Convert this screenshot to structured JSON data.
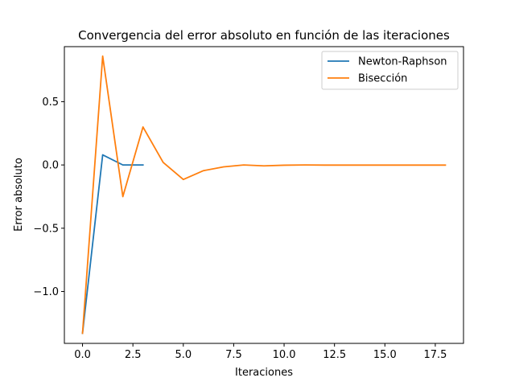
{
  "chart_data": {
    "type": "line",
    "title": "Convergencia del error absoluto en función de las iteraciones",
    "xlabel": "Iteraciones",
    "ylabel": "Error absoluto",
    "xlim": [
      -0.9,
      18.9
    ],
    "ylim": [
      -1.41,
      0.935
    ],
    "xticks": [
      0,
      2.5,
      5,
      7.5,
      10,
      12.5,
      15,
      17.5
    ],
    "xtick_labels": [
      "0.0",
      "2.5",
      "5.0",
      "7.5",
      "10.0",
      "12.5",
      "15.0",
      "17.5"
    ],
    "yticks": [
      -1.0,
      -0.5,
      0.0,
      0.5
    ],
    "ytick_labels": [
      "−1.0",
      "−0.5",
      "0.0",
      "0.5"
    ],
    "grid": false,
    "legend_position": "top-right",
    "series": [
      {
        "name": "Newton-Raphson",
        "color": "#1f77b4",
        "x": [
          0,
          1,
          2,
          3
        ],
        "y": [
          -1.33,
          0.08,
          0.0,
          0.0
        ]
      },
      {
        "name": "Bisección",
        "color": "#ff7f0e",
        "x": [
          0,
          1,
          2,
          3,
          4,
          5,
          6,
          7,
          8,
          9,
          10,
          11,
          12,
          13,
          14,
          15,
          16,
          17,
          18
        ],
        "y": [
          -1.33,
          0.86,
          -0.25,
          0.3,
          0.02,
          -0.115,
          -0.045,
          -0.015,
          0.0,
          -0.007,
          -0.002,
          0.0,
          -0.001,
          -0.001,
          -0.001,
          -0.001,
          -0.001,
          -0.001,
          -0.001
        ]
      }
    ]
  }
}
